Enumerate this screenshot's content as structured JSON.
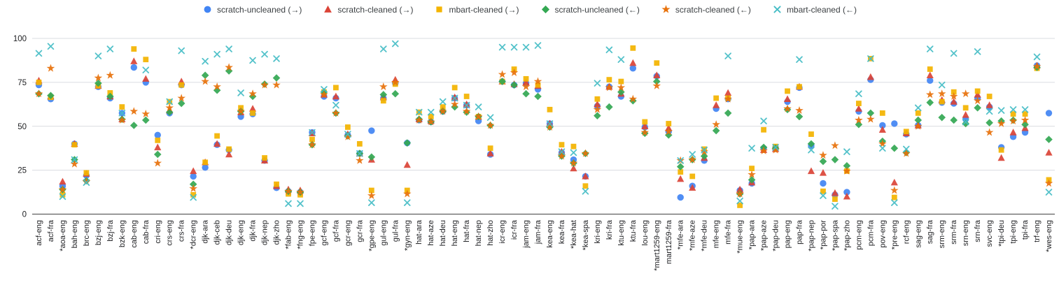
{
  "chart_data": {
    "type": "scatter",
    "title": "",
    "xlabel": "",
    "ylabel": "",
    "ylim": [
      0,
      100
    ],
    "yticks": [
      0,
      25,
      50,
      75,
      100
    ],
    "grid": true,
    "legend_position": "top",
    "categories": [
      "acf-eng",
      "acf-fra",
      "*aoa-eng",
      "bah-eng",
      "brc-eng",
      "bzj-eng",
      "bzj-fra",
      "bzk-eng",
      "cab-eng",
      "cab-fra",
      "cri-eng",
      "crs-eng",
      "crs-fra",
      "*dcr-eng",
      "djk-ara",
      "djk-ceb",
      "djk-deu",
      "djk-eng",
      "djk-fra",
      "djk-nep",
      "djk-zho",
      "*fab-eng",
      "*fng-eng",
      "fpe-eng",
      "gcf-eng",
      "gcf-fra",
      "gcr-eng",
      "gcr-fra",
      "*gpe-eng",
      "gul-eng",
      "gul-fra",
      "*gyn-eng",
      "hat-ara",
      "hat-aze",
      "hat-deu",
      "hat-eng",
      "hat-fra",
      "hat-nep",
      "hat-zho",
      "icr-eng",
      "icr-fra",
      "jam-eng",
      "jam-fra",
      "kea-eng",
      "kea-fra",
      "*kea-hat",
      "*kea-spa",
      "kri-eng",
      "kri-fra",
      "ktu-eng",
      "ktu-fra",
      "lou-eng",
      "*mart1259-eng",
      "mart1259-fra",
      "*mfe-ara",
      "*mfe-aze",
      "*mfe-deu",
      "mfe-eng",
      "mfe-fra",
      "*mue-eng",
      "*pap-ara",
      "*pap-aze",
      "*pap-deu",
      "pap-eng",
      "pap-fra",
      "*pap-nep",
      "*pap-por",
      "*pap-spa",
      "*pap-zho",
      "pcm-eng",
      "pcm-fra",
      "pov-eng",
      "*pre-eng",
      "rcf-eng",
      "sag-eng",
      "sag-fra",
      "srm-eng",
      "srm-fra",
      "srn-eng",
      "srn-fra",
      "svc-eng",
      "*tpi-deu",
      "tpi-eng",
      "tpi-fra",
      "trf-eng",
      "*wes-eng"
    ],
    "series": [
      {
        "name": "scratch-uncleaned (→)",
        "marker": "circle",
        "color": "#4285F4",
        "values": [
          73.5,
          65.5,
          16,
          40,
          22,
          72.5,
          66,
          57.5,
          83.5,
          75,
          45,
          57.5,
          73.5,
          21.5,
          26.5,
          39.5,
          36.5,
          55.5,
          57,
          30.5,
          15,
          13,
          12.5,
          46.5,
          67,
          66,
          45,
          34.5,
          47.5,
          66,
          74.5,
          40.5,
          53.5,
          52.5,
          58.5,
          66,
          62,
          53,
          34,
          75.5,
          73.5,
          74.5,
          71,
          51.5,
          35,
          31,
          21.5,
          61.5,
          72.5,
          67,
          83,
          49.5,
          78.5,
          47,
          9.5,
          16,
          30.5,
          60,
          65.5,
          13.5,
          17.5,
          37.5,
          38,
          64,
          72,
          39,
          17.5,
          11,
          12.5,
          58.5,
          76.5,
          50.5,
          51.5,
          45.5,
          50.5,
          76,
          63.5,
          63,
          54,
          66,
          61,
          38,
          44,
          46.5,
          84.5,
          57.5
        ]
      },
      {
        "name": "scratch-cleaned (→)",
        "marker": "triangle",
        "color": "#DB4437",
        "values": [
          76,
          67,
          18.5,
          40,
          23,
          73,
          67,
          54,
          87,
          77,
          38,
          59,
          75.5,
          24.5,
          29.5,
          40,
          34,
          58,
          60,
          30.5,
          16,
          14,
          13.5,
          46,
          68,
          67,
          45.5,
          34.5,
          31,
          66.5,
          76.5,
          28,
          54,
          53,
          59.5,
          66.5,
          62.5,
          55.5,
          34.5,
          75.5,
          74,
          75,
          73,
          51.5,
          35.5,
          26,
          21.5,
          62.5,
          72.5,
          68.5,
          86,
          50,
          79,
          49,
          20,
          15,
          32,
          62,
          69,
          14,
          18,
          36.5,
          37,
          65.5,
          72.5,
          24.5,
          23.5,
          12,
          10,
          60,
          78,
          48,
          18,
          46,
          50.5,
          79,
          65,
          64,
          56.5,
          68,
          62,
          32,
          46.5,
          49,
          84.5,
          35
        ]
      },
      {
        "name": "mbart-cleaned (→)",
        "marker": "square",
        "color": "#F4B400",
        "values": [
          75,
          66.5,
          11,
          39.5,
          23.5,
          73,
          69,
          61,
          94,
          88,
          42,
          64,
          73.5,
          11,
          29.5,
          44.5,
          37,
          60.5,
          57.5,
          32,
          17,
          11.5,
          11,
          42.5,
          69.5,
          72,
          49.5,
          40,
          13.5,
          64.5,
          74,
          13.5,
          58,
          55.5,
          61,
          72,
          67,
          55.5,
          37.5,
          75.5,
          82.5,
          77,
          73.5,
          59.5,
          39.5,
          38.5,
          16,
          65.5,
          76.5,
          75.5,
          94.5,
          52.5,
          86,
          51.5,
          24,
          21.5,
          37,
          66,
          66,
          5,
          26,
          48,
          38.5,
          70,
          72.5,
          45.5,
          13,
          8.5,
          24.5,
          63,
          88.5,
          57.5,
          9.5,
          47,
          57.5,
          82.5,
          64,
          69.5,
          60.5,
          70,
          67,
          36.5,
          57,
          57,
          83,
          19.5
        ]
      },
      {
        "name": "scratch-uncleaned (←)",
        "marker": "diamond",
        "color": "#34A853",
        "values": [
          68.5,
          67.5,
          14,
          31,
          19,
          74.5,
          67,
          54,
          50.5,
          53.5,
          34,
          58,
          63,
          17,
          79,
          70.5,
          81.5,
          58.5,
          67,
          74,
          77.5,
          13,
          12.5,
          39.5,
          69.5,
          57.5,
          44.5,
          34.5,
          32.5,
          68,
          68.5,
          40.5,
          54,
          52.5,
          58.5,
          61,
          58,
          55.5,
          50.5,
          75.5,
          73.5,
          68.5,
          67,
          49.5,
          33,
          29,
          34.5,
          56,
          61,
          69.5,
          64.5,
          46,
          75.5,
          45,
          27,
          31,
          33,
          47.5,
          57.5,
          11.5,
          19.5,
          38,
          37.5,
          59.5,
          55.5,
          40,
          30,
          31,
          27.5,
          51,
          57.5,
          41.5,
          37.5,
          35,
          53.5,
          63.5,
          55,
          53.5,
          51.5,
          60.5,
          52,
          53,
          53.5,
          51,
          83.5,
          42.5
        ]
      },
      {
        "name": "scratch-cleaned (←)",
        "marker": "star",
        "color": "#E8710A",
        "values": [
          68.5,
          83,
          14,
          28.5,
          18.5,
          77.5,
          79,
          53.5,
          58.5,
          57,
          29,
          60.5,
          66,
          14.5,
          75.5,
          72.5,
          83.5,
          58.5,
          68.5,
          73.5,
          73.5,
          13,
          12.5,
          39.5,
          68,
          57.5,
          44,
          30.5,
          10.5,
          72.5,
          75,
          11.5,
          53.5,
          52.5,
          58.5,
          62.5,
          58.5,
          55.5,
          50.5,
          79.5,
          80.5,
          72.5,
          75.5,
          49.5,
          33,
          29,
          34.5,
          59.5,
          72,
          72,
          65.5,
          46.5,
          73,
          47,
          30.5,
          31,
          35.5,
          51,
          65.5,
          11.5,
          22.5,
          36,
          36.5,
          60,
          59,
          null,
          33.5,
          39,
          24.5,
          53.5,
          54,
          40,
          13.5,
          34.5,
          50,
          68,
          68.5,
          67,
          68.5,
          64.5,
          46.5,
          51.5,
          53,
          53.5,
          84,
          17.5
        ]
      },
      {
        "name": "mbart-cleaned (←)",
        "marker": "x",
        "color": "#46BDC6",
        "values": [
          91.5,
          95.5,
          10,
          31,
          18,
          90,
          94,
          57.5,
          null,
          82,
          null,
          64,
          93,
          9.5,
          87,
          91,
          94,
          69,
          87.5,
          91,
          88.5,
          6,
          6,
          46.5,
          71,
          62,
          45.5,
          34.5,
          6.5,
          94,
          97,
          6.5,
          58,
          58,
          64,
          66,
          62,
          61,
          55,
          95,
          95,
          95,
          96,
          51.5,
          35.5,
          35,
          13,
          74.5,
          93.5,
          88,
          null,
          null,
          null,
          null,
          30.5,
          34,
          36.5,
          null,
          90,
          7.5,
          37.5,
          53,
          38,
          null,
          88,
          36.5,
          10.5,
          4.5,
          35.5,
          68.5,
          88.5,
          37.5,
          6.5,
          37,
          60.5,
          94,
          73.5,
          91.5,
          52.5,
          92.5,
          58.5,
          59,
          59.5,
          59.5,
          89.5,
          12.5
        ]
      }
    ],
    "axis": {
      "ytick_labels": [
        "0",
        "25",
        "50",
        "75",
        "100"
      ],
      "gridline_color": "#dadce0",
      "baseline_color": "#424242",
      "label_color": "#202124"
    }
  }
}
